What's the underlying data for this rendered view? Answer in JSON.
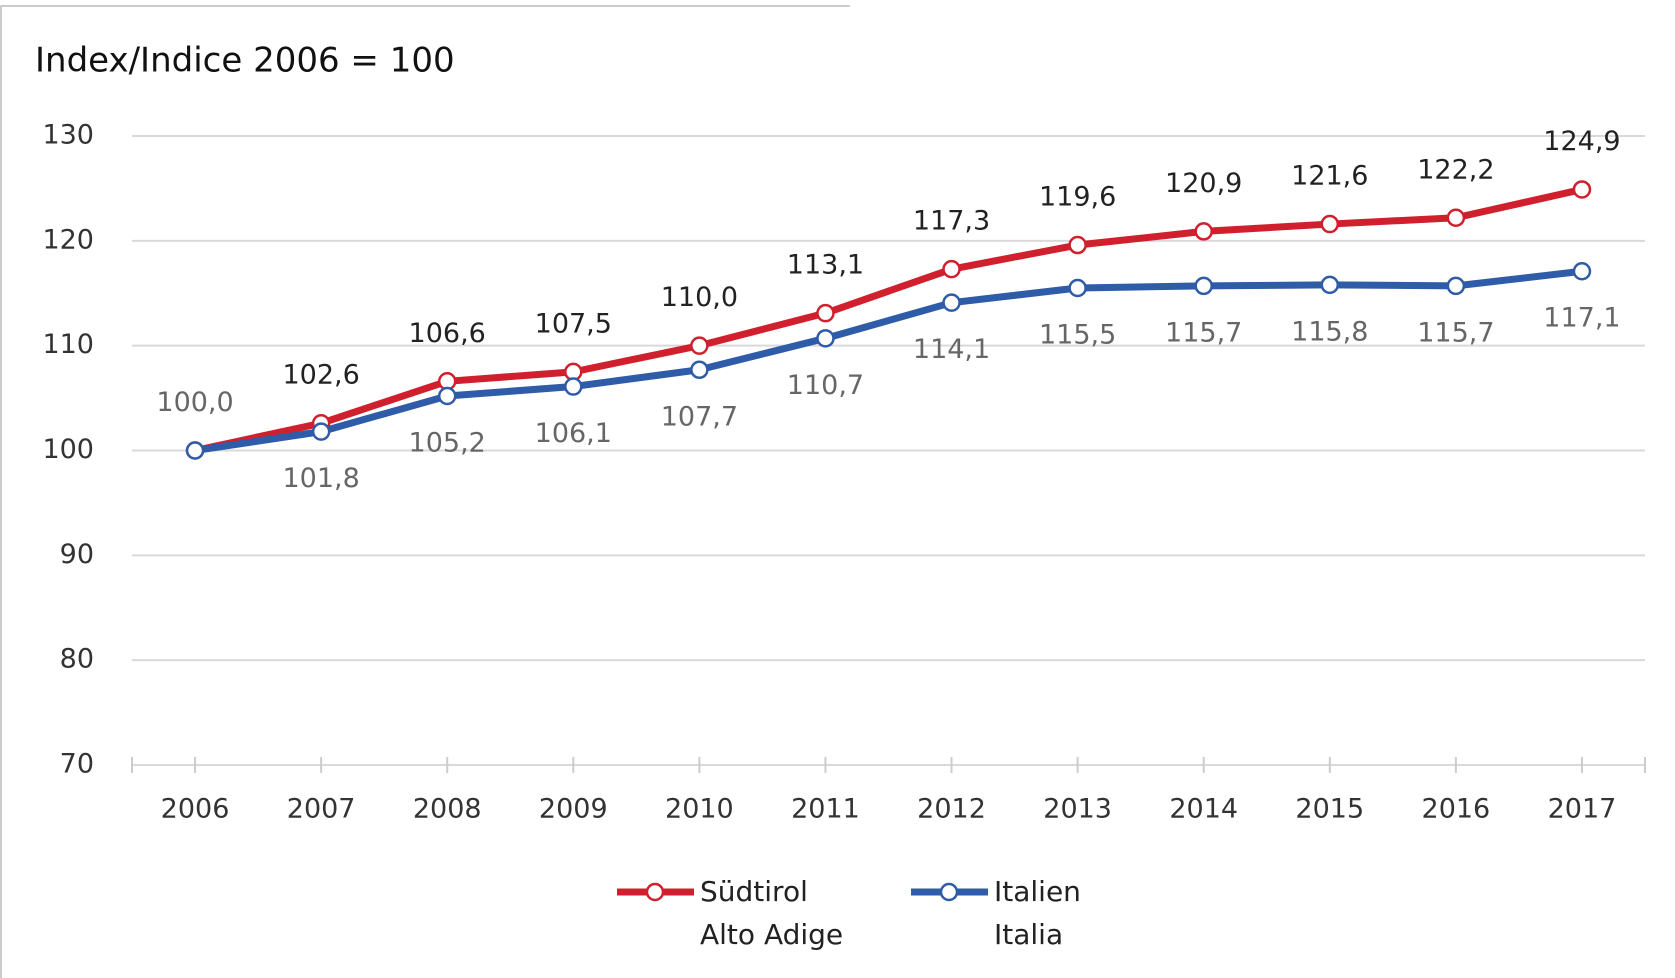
{
  "chart_data": {
    "type": "line",
    "title": "Index/Indice 2006 = 100",
    "categories": [
      "2006",
      "2007",
      "2008",
      "2009",
      "2010",
      "2011",
      "2012",
      "2013",
      "2014",
      "2015",
      "2016",
      "2017"
    ],
    "series": [
      {
        "name": "Südtirol\nAlto Adige",
        "color": "#d0202e",
        "values": [
          100.0,
          102.6,
          106.6,
          107.5,
          110.0,
          113.1,
          117.3,
          119.6,
          120.9,
          121.6,
          122.2,
          124.9
        ],
        "value_labels": [
          null,
          "102,6",
          "106,6",
          "107,5",
          "110,0",
          "113,1",
          "117,3",
          "119,6",
          "120,9",
          "121,6",
          "122,2",
          "124,9"
        ]
      },
      {
        "name": "Italien\nItalia",
        "color": "#2e5ca8",
        "values": [
          100.0,
          101.8,
          105.2,
          106.1,
          107.7,
          110.7,
          114.1,
          115.5,
          115.7,
          115.8,
          115.7,
          117.1
        ],
        "value_labels": [
          "100,0",
          "101,8",
          "105,2",
          "106,1",
          "107,7",
          "110,7",
          "114,1",
          "115,5",
          "115,7",
          "115,8",
          "115,7",
          "117,1"
        ]
      }
    ],
    "ylim": [
      70,
      130
    ],
    "yticks": [
      70,
      80,
      90,
      100,
      110,
      120,
      130
    ],
    "grid": true,
    "legend": "bottom"
  }
}
